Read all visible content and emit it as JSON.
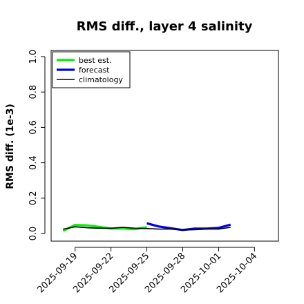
{
  "chart_data": {
    "type": "line",
    "title": "RMS diff., layer 4 salinity",
    "xlabel": "",
    "ylabel": "RMS diff. (1e-3)",
    "ylim": [
      0.0,
      1.0
    ],
    "yticks": [
      "0.0",
      "0.2",
      "0.4",
      "0.6",
      "0.8",
      "1.0"
    ],
    "xlim": [
      "2025-09-17",
      "2025-10-06"
    ],
    "xticks": [
      "2025-09-19",
      "2025-09-22",
      "2025-09-25",
      "2025-09-28",
      "2025-10-01",
      "2025-10-04"
    ],
    "highlight_tick": "2025-09-25",
    "highlight_color": "#228B22",
    "legend_position": "top-left",
    "grid": false,
    "series": [
      {
        "name": "best est.",
        "color": "#00ee00",
        "x": [
          "2025-09-18",
          "2025-09-19",
          "2025-09-20",
          "2025-09-21",
          "2025-09-22",
          "2025-09-23",
          "2025-09-24",
          "2025-09-25"
        ],
        "y": [
          0.015,
          0.048,
          0.046,
          0.038,
          0.028,
          0.028,
          0.025,
          0.035
        ]
      },
      {
        "name": "forecast",
        "color": "#0000ee",
        "x": [
          "2025-09-25",
          "2025-09-26",
          "2025-09-27",
          "2025-09-28",
          "2025-09-29",
          "2025-09-30",
          "2025-10-01",
          "2025-10-02"
        ],
        "y": [
          0.058,
          0.04,
          0.03,
          0.02,
          0.028,
          0.028,
          0.032,
          0.05
        ]
      },
      {
        "name": "climatology",
        "color": "#000000",
        "x": [
          "2025-09-18",
          "2025-09-19",
          "2025-09-20",
          "2025-09-21",
          "2025-09-22",
          "2025-09-23",
          "2025-09-24",
          "2025-09-25",
          "2025-09-26",
          "2025-09-27",
          "2025-09-28",
          "2025-09-29",
          "2025-09-30",
          "2025-10-01",
          "2025-10-02"
        ],
        "y": [
          0.025,
          0.038,
          0.033,
          0.03,
          0.03,
          0.035,
          0.03,
          0.028,
          0.025,
          0.025,
          0.02,
          0.022,
          0.025,
          0.025,
          0.035
        ]
      }
    ]
  }
}
